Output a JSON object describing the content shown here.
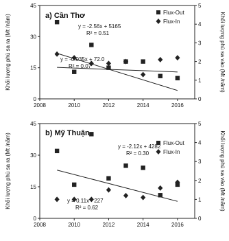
{
  "chart_data": [
    {
      "type": "scatter",
      "title": "a) Cần Thơ",
      "ylabel_left": "Khối lượng phù sa ra (Mt /năm)",
      "ylabel_right": "Khối lượng phù sa vào (Mt /năm)",
      "xlim": [
        2008,
        2017
      ],
      "ylim_left": [
        0,
        45
      ],
      "ylim_right": [
        0,
        5
      ],
      "x_ticks": [
        "2008",
        "2010",
        "2012",
        "2014",
        "2016"
      ],
      "y_left_ticks": [
        "0",
        "15",
        "30",
        "45"
      ],
      "y_right_ticks": [
        "0",
        "1",
        "2",
        "3",
        "4",
        "5"
      ],
      "series": [
        {
          "name": "Flux-Out",
          "marker": "square",
          "axis": "left",
          "x": [
            2009,
            2010,
            2011,
            2012,
            2013,
            2014,
            2015,
            2016
          ],
          "y": [
            37,
            13,
            26,
            15,
            18,
            18,
            11,
            10
          ],
          "trendline": {
            "slope": -2.56,
            "intercept": 5165,
            "equation": "y = -2.56x + 5165",
            "r2": "R² = 0.51"
          }
        },
        {
          "name": "Flux-In",
          "marker": "diamond",
          "axis": "right",
          "x": [
            2009,
            2010,
            2011,
            2012,
            2013,
            2014,
            2015,
            2016
          ],
          "y": [
            2.4,
            2.2,
            1.9,
            1.9,
            2.0,
            1.3,
            2.1,
            2.2
          ],
          "trendline": {
            "slope": -0.035,
            "intercept": 72.0,
            "equation": "y = -0.035x + 72.0",
            "r2": "R² = 0.07"
          }
        }
      ]
    },
    {
      "type": "scatter",
      "title": "b) Mỹ Thuận",
      "ylabel_left": "Khối lượng phù sa ra (Mt /năm)",
      "ylabel_right": "Khối lượng phù sa vào (Mt /năm)",
      "xlim": [
        2008,
        2017
      ],
      "ylim_left": [
        0,
        45
      ],
      "ylim_right": [
        0,
        5
      ],
      "x_ticks": [
        "2008",
        "2010",
        "2012",
        "2014",
        "2016"
      ],
      "y_left_ticks": [
        "0",
        "15",
        "30",
        "45"
      ],
      "y_right_ticks": [
        "0",
        "1",
        "2",
        "3",
        "4",
        "5"
      ],
      "series": [
        {
          "name": "Flux-Out",
          "marker": "square",
          "axis": "left",
          "x": [
            2009,
            2010,
            2011,
            2012,
            2013,
            2014,
            2015,
            2016
          ],
          "y": [
            32,
            16,
            40,
            19,
            25,
            24,
            11,
            16
          ],
          "trendline": {
            "slope": -2.12,
            "intercept": 4282,
            "equation": "y = -2.12x + 4282",
            "r2": "R² = 0.30"
          }
        },
        {
          "name": "Flux-In",
          "marker": "diamond",
          "axis": "right",
          "x": [
            2009,
            2010,
            2011,
            2012,
            2013,
            2014,
            2015,
            2016
          ],
          "y": [
            1.0,
            1.0,
            1.0,
            1.5,
            1.2,
            1.1,
            1.6,
            1.9
          ],
          "trendline": {
            "slope": 0.11,
            "intercept": -227,
            "equation": "y = 0.11x - 227",
            "r2": "R² = 0.62"
          }
        }
      ]
    }
  ]
}
